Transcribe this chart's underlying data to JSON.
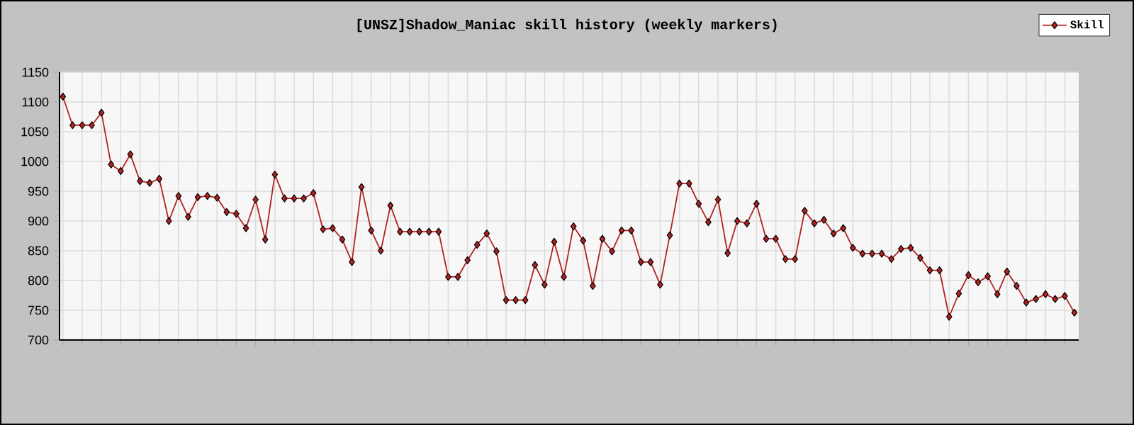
{
  "chart_data": {
    "type": "line",
    "title": "[UNSZ]Shadow_Maniac skill history (weekly markers)",
    "categories": [
      null,
      null,
      null,
      null,
      null,
      null,
      null,
      null,
      null,
      null,
      null,
      null,
      null,
      null,
      null,
      null,
      null,
      null,
      null,
      null,
      null,
      null,
      null,
      null,
      null,
      null,
      null,
      null,
      null,
      null,
      null,
      null,
      null,
      null,
      null,
      null,
      null,
      null,
      null,
      null,
      null,
      null,
      null,
      null,
      null,
      null,
      null,
      null,
      null,
      null,
      null,
      null,
      null,
      null,
      null,
      null,
      null,
      null,
      null,
      null,
      null,
      null,
      null,
      null,
      null,
      null,
      null,
      null,
      null,
      null,
      null,
      null,
      null,
      null,
      null,
      null,
      null,
      null,
      null,
      null,
      null,
      null,
      null,
      null,
      null,
      null,
      null,
      null,
      null,
      null,
      null,
      null,
      null,
      null,
      null,
      null,
      null,
      null,
      null,
      null,
      null,
      null,
      null,
      null,
      null,
      null
    ],
    "series": [
      {
        "name": "Skill",
        "color": "#b22222",
        "values": [
          1109,
          1061,
          1061,
          1061,
          1082,
          995,
          984,
          1012,
          967,
          964,
          971,
          900,
          942,
          907,
          940,
          942,
          939,
          915,
          912,
          888,
          936,
          869,
          978,
          938,
          938,
          938,
          947,
          886,
          888,
          869,
          831,
          957,
          884,
          850,
          926,
          882,
          882,
          882,
          882,
          882,
          806,
          806,
          834,
          860,
          879,
          849,
          767,
          767,
          767,
          826,
          793,
          865,
          806,
          891,
          867,
          791,
          870,
          849,
          884,
          884,
          831,
          831,
          793,
          876,
          963,
          963,
          929,
          898,
          936,
          846,
          900,
          896,
          929,
          870,
          870,
          836,
          836,
          917,
          896,
          902,
          879,
          888,
          855,
          845,
          845,
          845,
          836,
          853,
          855,
          838,
          817,
          817,
          739,
          778,
          809,
          797,
          807,
          777,
          815,
          791,
          763,
          769,
          777,
          769,
          774,
          746
        ]
      }
    ],
    "ylim": [
      700,
      1150
    ],
    "yticks": [
      700,
      750,
      800,
      850,
      900,
      950,
      1000,
      1050,
      1100,
      1150
    ],
    "grid": true,
    "legend": "top right",
    "marker": "diamond",
    "line_style": "solid"
  }
}
